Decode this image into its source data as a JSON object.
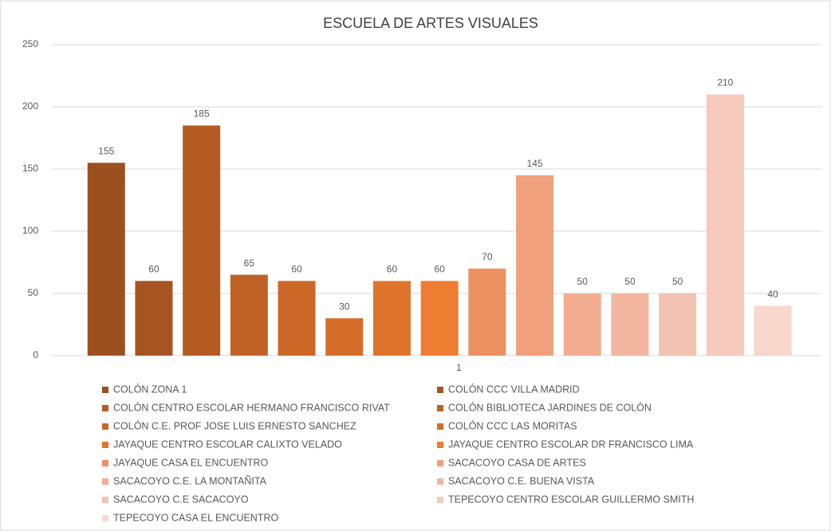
{
  "chart_data": {
    "type": "bar",
    "title": "ESCUELA DE ARTES VISUALES",
    "categories": [
      "1"
    ],
    "series": [
      {
        "name": "COLÓN ZONA 1",
        "color": "#9c4f1f",
        "values": [
          155
        ]
      },
      {
        "name": "COLÓN CCC VILLA MADRID",
        "color": "#a65421",
        "values": [
          60
        ]
      },
      {
        "name": "COLÓN CENTRO ESCOLAR HERMANO FRANCISCO RIVAT",
        "color": "#b45b23",
        "values": [
          185
        ]
      },
      {
        "name": "COLÓN BIBLIOTECA JARDINES DE COLÓN",
        "color": "#c06226",
        "values": [
          65
        ]
      },
      {
        "name": "COLÓN C.E. PROF JOSE LUIS ERNESTO SANCHEZ",
        "color": "#cb6828",
        "values": [
          60
        ]
      },
      {
        "name": "COLÓN CCC LAS MORITAS",
        "color": "#d56d2a",
        "values": [
          30
        ]
      },
      {
        "name": "JAYAQUE CENTRO ESCOLAR CALIXTO VELADO",
        "color": "#e0742d",
        "values": [
          60
        ]
      },
      {
        "name": "JAYAQUE CENTRO ESCOLAR DR FRANCISCO LIMA",
        "color": "#ed7d31",
        "values": [
          60
        ]
      },
      {
        "name": "JAYAQUE CASA EL ENCUENTRO",
        "color": "#ee9160",
        "values": [
          70
        ]
      },
      {
        "name": "SACACOYO CASA DE ARTES",
        "color": "#f0a07c",
        "values": [
          145
        ]
      },
      {
        "name": "SACACOYO C.E. LA MONTAÑITA",
        "color": "#f2ac90",
        "values": [
          50
        ]
      },
      {
        "name": "SACACOYO C.E. BUENA VISTA",
        "color": "#f3b7a1",
        "values": [
          50
        ]
      },
      {
        "name": "SACACOYO C.E SACACOYO",
        "color": "#f4c2b2",
        "values": [
          50
        ]
      },
      {
        "name": "TEPECOYO CENTRO ESCOLAR GUILLERMO SMITH",
        "color": "#f6cbbd",
        "values": [
          210
        ]
      },
      {
        "name": "TEPECOYO CASA EL ENCUENTRO",
        "color": "#f8d7cc",
        "values": [
          40
        ]
      }
    ],
    "ylim": [
      0,
      250
    ],
    "yticks": [
      0,
      50,
      100,
      150,
      200,
      250
    ],
    "grid": true,
    "legend": "bottom"
  }
}
